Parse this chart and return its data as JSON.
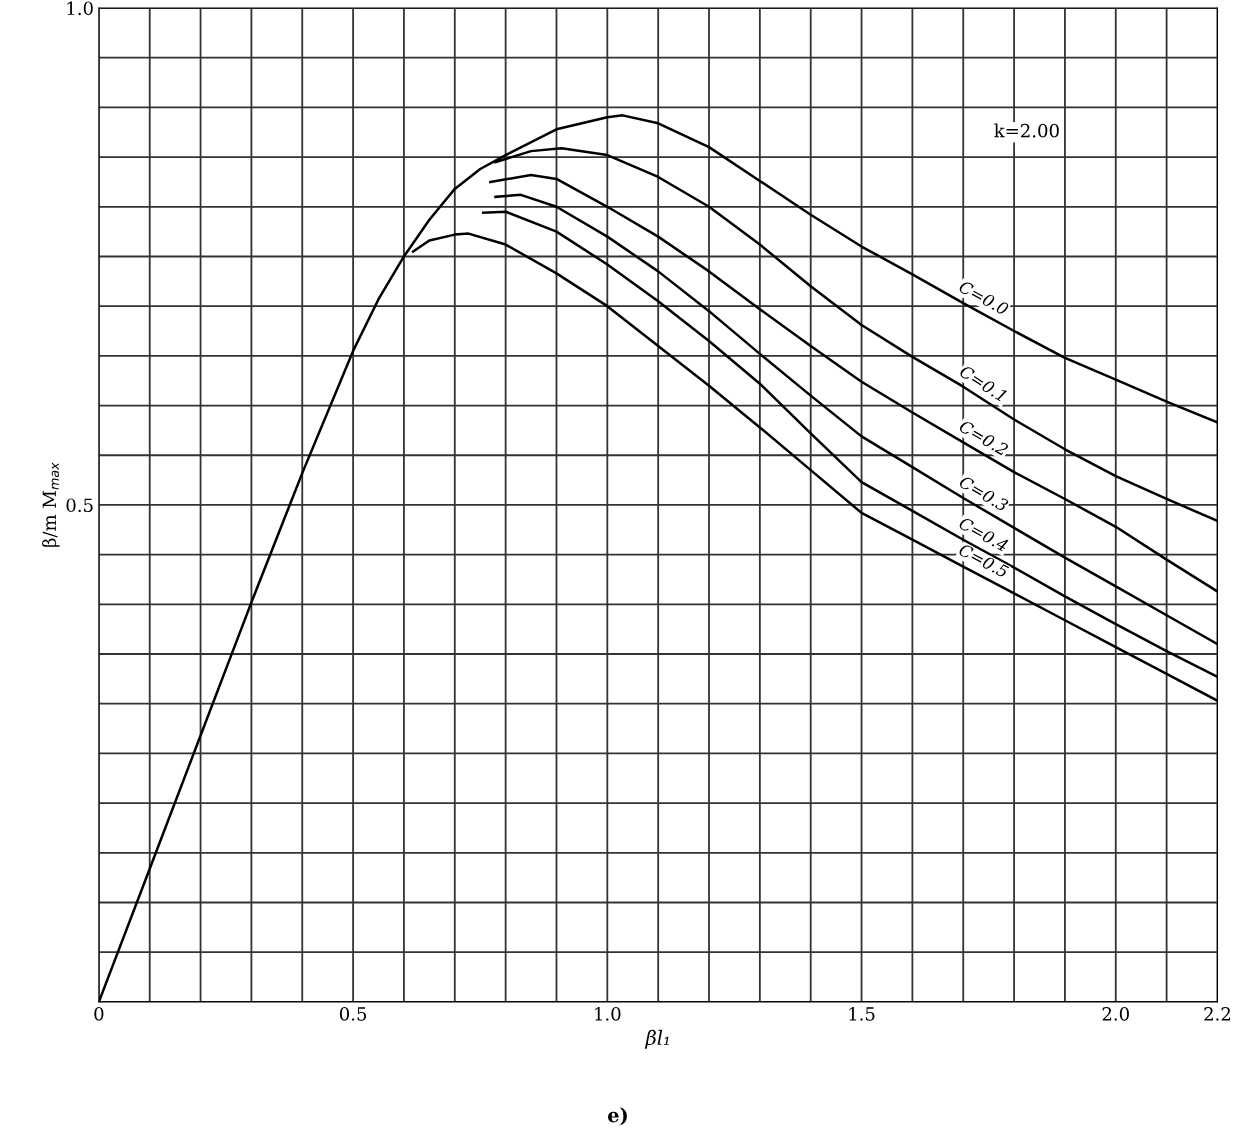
{
  "chart_data": {
    "type": "line",
    "xlabel": "βl₁",
    "ylabel": "β/m M$_{max}$",
    "annotations": [
      "k=2.00",
      "e)"
    ],
    "xlim": [
      0,
      2.2
    ],
    "ylim": [
      0,
      1
    ],
    "xticks": [
      "0",
      {
        "value": 0.1,
        "label": null
      },
      {
        "value": 0.2,
        "label": null
      },
      {
        "value": 0.3,
        "label": null
      },
      {
        "value": 0.4,
        "label": null
      },
      0.5,
      {
        "value": 0.6,
        "label": null
      },
      {
        "value": 0.7,
        "label": null
      },
      {
        "value": 0.8,
        "label": null
      },
      {
        "value": 0.9,
        "label": null
      },
      {
        "value": 1.0,
        "label": "1.0"
      },
      {
        "value": 1.1,
        "label": null
      },
      {
        "value": 1.2,
        "label": null
      },
      {
        "value": 1.3,
        "label": null
      },
      {
        "value": 1.4,
        "label": null
      },
      1.5,
      {
        "value": 1.6,
        "label": null
      },
      {
        "value": 1.7,
        "label": null
      },
      {
        "value": 1.8,
        "label": null
      },
      {
        "value": 1.9,
        "label": null
      },
      {
        "value": 2.0,
        "label": "2.0"
      },
      {
        "value": 2.1,
        "label": null
      },
      2.2
    ],
    "yticks": [
      {
        "value": 0,
        "label": null
      },
      {
        "value": 0.05,
        "label": null
      },
      {
        "value": 0.1,
        "label": null
      },
      {
        "value": 0.15,
        "label": null
      },
      {
        "value": 0.2,
        "label": null
      },
      {
        "value": 0.25,
        "label": null
      },
      {
        "value": 0.3,
        "label": null
      },
      {
        "value": 0.35,
        "label": null
      },
      {
        "value": 0.4,
        "label": null
      },
      {
        "value": 0.45,
        "label": null
      },
      0.5,
      {
        "value": 0.55,
        "label": null
      },
      {
        "value": 0.6,
        "label": null
      },
      {
        "value": 0.65,
        "label": null
      },
      {
        "value": 0.7,
        "label": null
      },
      {
        "value": 0.75,
        "label": null
      },
      {
        "value": 0.8,
        "label": null
      },
      {
        "value": 0.85,
        "label": null
      },
      {
        "value": 0.9,
        "label": null
      },
      {
        "value": 0.95,
        "label": null
      },
      {
        "value": 1,
        "label": "1.0"
      }
    ],
    "grid": true,
    "legend": false,
    "marker": "none",
    "line_style": "solid",
    "series": [
      {
        "name": "C=0.0",
        "color": "#000000",
        "x": [
          0,
          0.1,
          0.2,
          0.3,
          0.4,
          0.5,
          0.55,
          0.6,
          0.65,
          0.7,
          0.75,
          0.8,
          0.9,
          1.0,
          1.03,
          1.1,
          1.2,
          1.3,
          1.4,
          1.5,
          1.6,
          1.7,
          1.8,
          1.9,
          2.0,
          2.1,
          2.2
        ],
        "values": [
          0,
          0.134,
          0.268,
          0.402,
          0.532,
          0.655,
          0.707,
          0.75,
          0.787,
          0.818,
          0.838,
          0.852,
          0.878,
          0.89,
          0.892,
          0.884,
          0.86,
          0.826,
          0.792,
          0.76,
          0.732,
          0.703,
          0.675,
          0.648,
          0.626,
          0.604,
          0.583
        ]
      },
      {
        "name": "C=0.1",
        "color": "#000000",
        "x": [
          0.78,
          0.85,
          0.91,
          1.0,
          1.1,
          1.2,
          1.3,
          1.4,
          1.5,
          1.6,
          1.7,
          1.8,
          1.9,
          2.0,
          2.1,
          2.2
        ],
        "values": [
          0.845,
          0.856,
          0.859,
          0.852,
          0.83,
          0.8,
          0.762,
          0.72,
          0.681,
          0.649,
          0.619,
          0.586,
          0.556,
          0.529,
          0.506,
          0.484
        ]
      },
      {
        "name": "C=0.2",
        "color": "#000000",
        "x": [
          0.77,
          0.85,
          0.9,
          1.0,
          1.1,
          1.2,
          1.3,
          1.4,
          1.5,
          1.6,
          1.7,
          1.8,
          1.9,
          2.0,
          2.1,
          2.2
        ],
        "values": [
          0.825,
          0.832,
          0.828,
          0.8,
          0.77,
          0.735,
          0.697,
          0.66,
          0.624,
          0.593,
          0.563,
          0.533,
          0.506,
          0.478,
          0.445,
          0.413
        ]
      },
      {
        "name": "C=0.3",
        "color": "#000000",
        "x": [
          0.78,
          0.83,
          0.9,
          1.0,
          1.1,
          1.2,
          1.3,
          1.4,
          1.5,
          1.6,
          1.7,
          1.8,
          1.9,
          2.0,
          2.1,
          2.2
        ],
        "values": [
          0.81,
          0.812,
          0.8,
          0.77,
          0.735,
          0.695,
          0.652,
          0.61,
          0.569,
          0.538,
          0.507,
          0.477,
          0.447,
          0.418,
          0.389,
          0.36
        ]
      },
      {
        "name": "C=0.4",
        "color": "#000000",
        "x": [
          0.756,
          0.8,
          0.9,
          1.0,
          1.1,
          1.2,
          1.3,
          1.4,
          1.5,
          1.6,
          1.7,
          1.8,
          1.9,
          2.0,
          2.1,
          2.2
        ],
        "values": [
          0.794,
          0.795,
          0.775,
          0.742,
          0.705,
          0.665,
          0.622,
          0.572,
          0.523,
          0.494,
          0.465,
          0.437,
          0.408,
          0.38,
          0.353,
          0.327
        ]
      },
      {
        "name": "C=0.5",
        "color": "#000000",
        "x": [
          0.618,
          0.65,
          0.7,
          0.727,
          0.8,
          0.9,
          1.0,
          1.1,
          1.2,
          1.3,
          1.4,
          1.5,
          1.6,
          1.7,
          1.8,
          1.9,
          2.0,
          2.1,
          2.2
        ],
        "values": [
          0.755,
          0.766,
          0.772,
          0.773,
          0.762,
          0.733,
          0.7,
          0.66,
          0.62,
          0.578,
          0.535,
          0.492,
          0.465,
          0.438,
          0.411,
          0.384,
          0.357,
          0.33,
          0.303
        ]
      }
    ]
  }
}
